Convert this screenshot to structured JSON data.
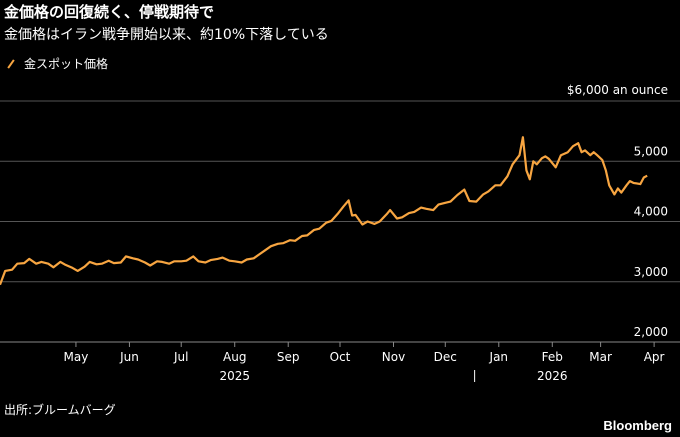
{
  "header": {
    "title": "金価格の回復続く、停戦期待で",
    "subtitle": "金価格はイラン戦争開始以来、約10%下落している"
  },
  "footer": {
    "source": "出所:ブルームバーグ",
    "brand": "Bloomberg"
  },
  "colors": {
    "background": "#000000",
    "line": "#f7a541",
    "grid": "#555555",
    "text": "#ffffff"
  },
  "chart_data": {
    "type": "line",
    "title": "金価格の回復続く、停戦期待で",
    "subtitle": "金価格はイラン戦争開始以来、約10%下落している",
    "xlabel": "",
    "ylabel": "",
    "y_unit_label": "$6,000 an ounce",
    "ylim": [
      2000,
      6000
    ],
    "xlim": [
      "2025-04-01",
      "2026-04-30"
    ],
    "grid": true,
    "legend_position": "top-left",
    "yticks": [
      {
        "value": 6000,
        "label": ""
      },
      {
        "value": 5000,
        "label": "5,000"
      },
      {
        "value": 4000,
        "label": "4,000"
      },
      {
        "value": 3000,
        "label": "3,000"
      },
      {
        "value": 2000,
        "label": "2,000"
      }
    ],
    "xticks": [
      {
        "date": "2025-05-15",
        "label": "May"
      },
      {
        "date": "2025-06-15",
        "label": "Jun"
      },
      {
        "date": "2025-07-15",
        "label": "Jul"
      },
      {
        "date": "2025-08-15",
        "label": "Aug"
      },
      {
        "date": "2025-09-15",
        "label": "Sep"
      },
      {
        "date": "2025-10-15",
        "label": "Oct"
      },
      {
        "date": "2025-11-15",
        "label": "Nov"
      },
      {
        "date": "2025-12-15",
        "label": "Dec"
      },
      {
        "date": "2026-01-15",
        "label": "Jan"
      },
      {
        "date": "2026-02-15",
        "label": "Feb"
      },
      {
        "date": "2026-03-15",
        "label": "Mar"
      },
      {
        "date": "2026-04-15",
        "label": "Apr"
      }
    ],
    "year_labels": [
      {
        "date": "2025-08-15",
        "label": "2025"
      },
      {
        "date": "2026-02-15",
        "label": "2026"
      }
    ],
    "year_divider": "2026-01-01",
    "series": [
      {
        "name": "金スポット価格",
        "color": "#f7a541",
        "points": [
          [
            "2025-04-01",
            2950
          ],
          [
            "2025-04-04",
            3180
          ],
          [
            "2025-04-08",
            3200
          ],
          [
            "2025-04-11",
            3300
          ],
          [
            "2025-04-15",
            3310
          ],
          [
            "2025-04-18",
            3380
          ],
          [
            "2025-04-22",
            3300
          ],
          [
            "2025-04-25",
            3330
          ],
          [
            "2025-04-29",
            3300
          ],
          [
            "2025-05-02",
            3240
          ],
          [
            "2025-05-06",
            3330
          ],
          [
            "2025-05-09",
            3280
          ],
          [
            "2025-05-13",
            3230
          ],
          [
            "2025-05-16",
            3180
          ],
          [
            "2025-05-20",
            3250
          ],
          [
            "2025-05-23",
            3330
          ],
          [
            "2025-05-27",
            3290
          ],
          [
            "2025-05-30",
            3300
          ],
          [
            "2025-06-03",
            3350
          ],
          [
            "2025-06-06",
            3310
          ],
          [
            "2025-06-10",
            3320
          ],
          [
            "2025-06-13",
            3420
          ],
          [
            "2025-06-17",
            3390
          ],
          [
            "2025-06-20",
            3370
          ],
          [
            "2025-06-24",
            3320
          ],
          [
            "2025-06-27",
            3270
          ],
          [
            "2025-07-01",
            3340
          ],
          [
            "2025-07-04",
            3330
          ],
          [
            "2025-07-08",
            3300
          ],
          [
            "2025-07-11",
            3340
          ],
          [
            "2025-07-15",
            3340
          ],
          [
            "2025-07-18",
            3350
          ],
          [
            "2025-07-22",
            3420
          ],
          [
            "2025-07-25",
            3340
          ],
          [
            "2025-07-29",
            3320
          ],
          [
            "2025-08-01",
            3360
          ],
          [
            "2025-08-05",
            3380
          ],
          [
            "2025-08-08",
            3400
          ],
          [
            "2025-08-12",
            3350
          ],
          [
            "2025-08-15",
            3340
          ],
          [
            "2025-08-19",
            3320
          ],
          [
            "2025-08-22",
            3370
          ],
          [
            "2025-08-26",
            3390
          ],
          [
            "2025-08-29",
            3450
          ],
          [
            "2025-09-02",
            3530
          ],
          [
            "2025-09-05",
            3590
          ],
          [
            "2025-09-09",
            3630
          ],
          [
            "2025-09-12",
            3640
          ],
          [
            "2025-09-16",
            3690
          ],
          [
            "2025-09-19",
            3680
          ],
          [
            "2025-09-23",
            3760
          ],
          [
            "2025-09-26",
            3770
          ],
          [
            "2025-09-30",
            3860
          ],
          [
            "2025-10-03",
            3880
          ],
          [
            "2025-10-07",
            3980
          ],
          [
            "2025-10-10",
            4010
          ],
          [
            "2025-10-14",
            4140
          ],
          [
            "2025-10-17",
            4250
          ],
          [
            "2025-10-20",
            4350
          ],
          [
            "2025-10-22",
            4100
          ],
          [
            "2025-10-24",
            4110
          ],
          [
            "2025-10-28",
            3950
          ],
          [
            "2025-10-31",
            4000
          ],
          [
            "2025-11-04",
            3960
          ],
          [
            "2025-11-07",
            4000
          ],
          [
            "2025-11-11",
            4120
          ],
          [
            "2025-11-13",
            4190
          ],
          [
            "2025-11-17",
            4050
          ],
          [
            "2025-11-20",
            4070
          ],
          [
            "2025-11-24",
            4140
          ],
          [
            "2025-11-27",
            4160
          ],
          [
            "2025-12-01",
            4230
          ],
          [
            "2025-12-04",
            4210
          ],
          [
            "2025-12-08",
            4190
          ],
          [
            "2025-12-11",
            4280
          ],
          [
            "2025-12-15",
            4310
          ],
          [
            "2025-12-18",
            4330
          ],
          [
            "2025-12-22",
            4440
          ],
          [
            "2025-12-26",
            4530
          ],
          [
            "2025-12-29",
            4340
          ],
          [
            "2026-01-02",
            4330
          ],
          [
            "2026-01-06",
            4450
          ],
          [
            "2026-01-09",
            4500
          ],
          [
            "2026-01-13",
            4600
          ],
          [
            "2026-01-16",
            4600
          ],
          [
            "2026-01-20",
            4750
          ],
          [
            "2026-01-23",
            4950
          ],
          [
            "2026-01-27",
            5100
          ],
          [
            "2026-01-29",
            5400
          ],
          [
            "2026-01-31",
            4850
          ],
          [
            "2026-02-02",
            4700
          ],
          [
            "2026-02-04",
            5000
          ],
          [
            "2026-02-06",
            4950
          ],
          [
            "2026-02-09",
            5050
          ],
          [
            "2026-02-11",
            5080
          ],
          [
            "2026-02-13",
            5040
          ],
          [
            "2026-02-17",
            4900
          ],
          [
            "2026-02-20",
            5100
          ],
          [
            "2026-02-24",
            5150
          ],
          [
            "2026-02-27",
            5250
          ],
          [
            "2026-03-02",
            5300
          ],
          [
            "2026-03-04",
            5150
          ],
          [
            "2026-03-06",
            5180
          ],
          [
            "2026-03-09",
            5100
          ],
          [
            "2026-03-11",
            5150
          ],
          [
            "2026-03-13",
            5100
          ],
          [
            "2026-03-16",
            5020
          ],
          [
            "2026-03-18",
            4850
          ],
          [
            "2026-03-20",
            4600
          ],
          [
            "2026-03-23",
            4450
          ],
          [
            "2026-03-25",
            4550
          ],
          [
            "2026-03-27",
            4480
          ],
          [
            "2026-03-30",
            4600
          ],
          [
            "2026-04-01",
            4670
          ],
          [
            "2026-04-03",
            4640
          ],
          [
            "2026-04-07",
            4620
          ],
          [
            "2026-04-09",
            4730
          ],
          [
            "2026-04-11",
            4760
          ]
        ]
      }
    ]
  }
}
